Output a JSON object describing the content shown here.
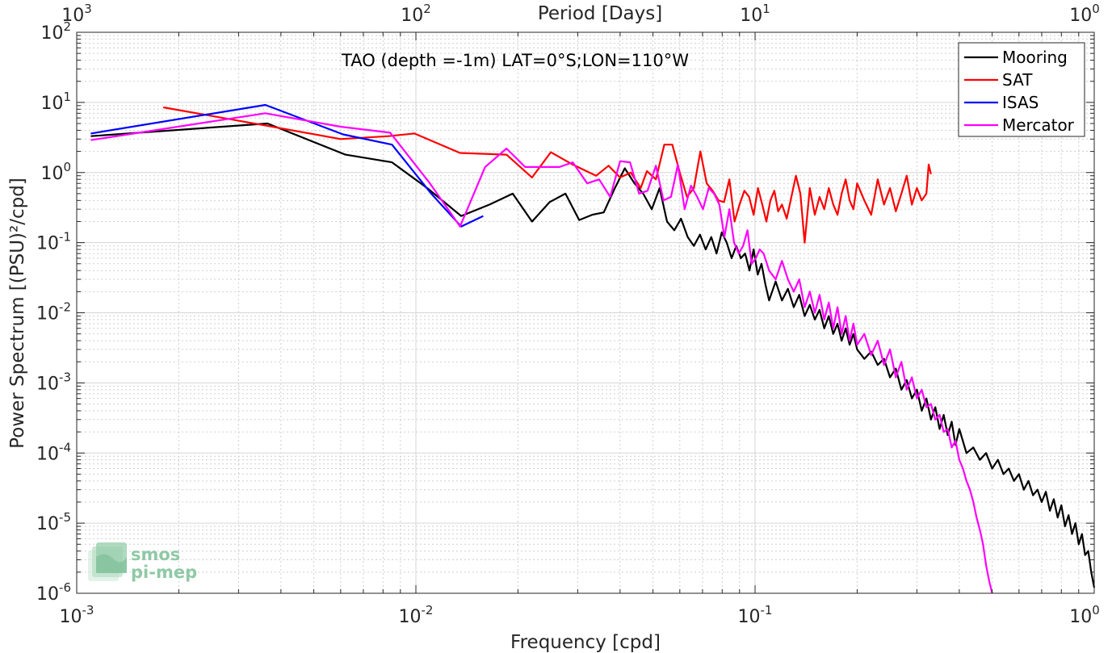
{
  "chart_data": {
    "type": "line",
    "title": "TAO (depth =-1m) LAT=0°S;LON=110°W",
    "xlabel": "Frequency [cpd]",
    "ylabel": "Power Spectrum [(PSU)²/cpd]",
    "top_xlabel": "Period [Days]",
    "xscale": "log",
    "yscale": "log",
    "xlim": [
      0.001,
      1
    ],
    "ylim": [
      1e-06,
      100
    ],
    "grid": true,
    "legend_position": "top-right",
    "x_ticks": [
      {
        "value": 0.001,
        "base": "10",
        "exp": "-3"
      },
      {
        "value": 0.01,
        "base": "10",
        "exp": "-2"
      },
      {
        "value": 0.1,
        "base": "10",
        "exp": "-1"
      },
      {
        "value": 1,
        "base": "10",
        "exp": "0"
      }
    ],
    "top_ticks": [
      {
        "value": 0.001,
        "base": "10",
        "exp": "3"
      },
      {
        "value": 0.01,
        "base": "10",
        "exp": "2"
      },
      {
        "value": 0.1,
        "base": "10",
        "exp": "1"
      },
      {
        "value": 1,
        "base": "10",
        "exp": "0"
      }
    ],
    "y_ticks": [
      {
        "value": 100,
        "base": "10",
        "exp": "2"
      },
      {
        "value": 10,
        "base": "10",
        "exp": "1"
      },
      {
        "value": 1,
        "base": "10",
        "exp": "0"
      },
      {
        "value": 0.1,
        "base": "10",
        "exp": "-1"
      },
      {
        "value": 0.01,
        "base": "10",
        "exp": "-2"
      },
      {
        "value": 0.001,
        "base": "10",
        "exp": "-3"
      },
      {
        "value": 0.0001,
        "base": "10",
        "exp": "-4"
      },
      {
        "value": 1e-05,
        "base": "10",
        "exp": "-5"
      },
      {
        "value": 1e-06,
        "base": "10",
        "exp": "-6"
      }
    ],
    "series": [
      {
        "name": "Mooring",
        "color": "#000000",
        "x": [
          0.0011,
          0.00365,
          0.0062,
          0.0085,
          0.0108,
          0.0136,
          0.0165,
          0.0193,
          0.022,
          0.0248,
          0.0276,
          0.0303,
          0.0331,
          0.0358,
          0.0386,
          0.0413,
          0.0441,
          0.0468,
          0.0496,
          0.0523,
          0.055,
          0.0578,
          0.0605,
          0.0633,
          0.066,
          0.0688,
          0.0715,
          0.0743,
          0.077,
          0.0798,
          0.0825,
          0.0853,
          0.088,
          0.0908,
          0.0935,
          0.0963,
          0.099,
          0.1018,
          0.1045,
          0.1073,
          0.11,
          0.115,
          0.12,
          0.125,
          0.13,
          0.135,
          0.14,
          0.145,
          0.15,
          0.155,
          0.16,
          0.165,
          0.17,
          0.175,
          0.18,
          0.185,
          0.19,
          0.195,
          0.2,
          0.21,
          0.22,
          0.23,
          0.24,
          0.25,
          0.26,
          0.27,
          0.28,
          0.29,
          0.3,
          0.31,
          0.32,
          0.33,
          0.34,
          0.35,
          0.36,
          0.37,
          0.38,
          0.39,
          0.4,
          0.42,
          0.44,
          0.46,
          0.48,
          0.5,
          0.52,
          0.54,
          0.56,
          0.58,
          0.6,
          0.62,
          0.64,
          0.66,
          0.68,
          0.7,
          0.72,
          0.74,
          0.76,
          0.78,
          0.8,
          0.82,
          0.84,
          0.86,
          0.88,
          0.9,
          0.92,
          0.94,
          0.96,
          0.98,
          1.0
        ],
        "y": [
          3.3,
          5.0,
          1.8,
          1.4,
          0.6,
          0.24,
          0.35,
          0.5,
          0.2,
          0.38,
          0.5,
          0.21,
          0.25,
          0.27,
          0.6,
          1.15,
          0.7,
          0.5,
          0.3,
          0.6,
          0.2,
          0.15,
          0.22,
          0.12,
          0.09,
          0.13,
          0.08,
          0.12,
          0.07,
          0.14,
          0.1,
          0.06,
          0.09,
          0.06,
          0.07,
          0.04,
          0.08,
          0.035,
          0.05,
          0.025,
          0.015,
          0.028,
          0.015,
          0.022,
          0.012,
          0.018,
          0.009,
          0.013,
          0.008,
          0.011,
          0.006,
          0.009,
          0.005,
          0.007,
          0.004,
          0.006,
          0.0035,
          0.005,
          0.003,
          0.0022,
          0.0028,
          0.0018,
          0.0022,
          0.0012,
          0.0016,
          0.0008,
          0.0011,
          0.0006,
          0.0008,
          0.0004,
          0.0006,
          0.0003,
          0.00045,
          0.00022,
          0.00035,
          0.00018,
          0.00028,
          0.00013,
          0.00022,
          0.0001,
          0.00012,
          8e-05,
          0.0001,
          6e-05,
          8e-05,
          5e-05,
          6e-05,
          4e-05,
          5e-05,
          3e-05,
          4e-05,
          2.5e-05,
          3e-05,
          2e-05,
          2.8e-05,
          1.5e-05,
          2.2e-05,
          1.2e-05,
          1.8e-05,
          9e-06,
          1.3e-05,
          7e-06,
          1e-05,
          5e-06,
          7e-06,
          3.5e-06,
          4e-06,
          2e-06,
          1.2e-06
        ]
      },
      {
        "name": "SAT",
        "color": "#ff0000",
        "x": [
          0.0018,
          0.0036,
          0.006,
          0.0083,
          0.0099,
          0.0135,
          0.0185,
          0.022,
          0.025,
          0.029,
          0.034,
          0.037,
          0.04,
          0.043,
          0.046,
          0.048,
          0.051,
          0.054,
          0.057,
          0.06,
          0.063,
          0.066,
          0.069,
          0.072,
          0.075,
          0.078,
          0.081,
          0.084,
          0.087,
          0.09,
          0.093,
          0.096,
          0.099,
          0.102,
          0.105,
          0.108,
          0.111,
          0.114,
          0.117,
          0.12,
          0.124,
          0.128,
          0.132,
          0.136,
          0.14,
          0.145,
          0.15,
          0.155,
          0.16,
          0.165,
          0.17,
          0.175,
          0.18,
          0.185,
          0.19,
          0.195,
          0.2,
          0.21,
          0.22,
          0.23,
          0.24,
          0.25,
          0.26,
          0.27,
          0.28,
          0.29,
          0.3,
          0.31,
          0.32,
          0.325,
          0.33
        ],
        "y": [
          8.5,
          4.7,
          3.0,
          3.3,
          3.6,
          1.9,
          1.8,
          0.85,
          1.95,
          1.3,
          0.9,
          1.25,
          0.85,
          1.0,
          0.6,
          1.05,
          0.8,
          2.5,
          2.5,
          1.0,
          0.45,
          0.6,
          2.0,
          0.7,
          0.55,
          0.4,
          0.38,
          0.8,
          0.2,
          0.35,
          0.55,
          0.45,
          0.25,
          0.6,
          0.35,
          0.2,
          0.4,
          0.55,
          0.28,
          0.35,
          0.22,
          0.45,
          0.9,
          0.5,
          0.1,
          0.6,
          0.25,
          0.45,
          0.3,
          0.6,
          0.35,
          0.25,
          0.5,
          0.8,
          0.4,
          0.3,
          0.7,
          0.4,
          0.25,
          0.8,
          0.35,
          0.6,
          0.28,
          0.5,
          0.9,
          0.35,
          0.6,
          0.4,
          0.5,
          1.3,
          0.95
        ]
      },
      {
        "name": "ISAS",
        "color": "#0000ff",
        "x": [
          0.0011,
          0.0036,
          0.0061,
          0.0085,
          0.0111,
          0.0136,
          0.0158
        ],
        "y": [
          3.6,
          9.2,
          3.5,
          2.5,
          0.5,
          0.17,
          0.24
        ]
      },
      {
        "name": "Mercator",
        "color": "#ff00ff",
        "x": [
          0.0011,
          0.0036,
          0.006,
          0.0084,
          0.011,
          0.0135,
          0.016,
          0.0185,
          0.021,
          0.0238,
          0.0265,
          0.029,
          0.032,
          0.0347,
          0.0374,
          0.04,
          0.0428,
          0.0455,
          0.0482,
          0.051,
          0.0537,
          0.0565,
          0.0592,
          0.062,
          0.0647,
          0.0675,
          0.0702,
          0.073,
          0.0757,
          0.0785,
          0.0812,
          0.084,
          0.0867,
          0.0895,
          0.0922,
          0.095,
          0.0977,
          0.1005,
          0.1032,
          0.106,
          0.11,
          0.115,
          0.12,
          0.125,
          0.13,
          0.135,
          0.14,
          0.145,
          0.15,
          0.155,
          0.16,
          0.165,
          0.17,
          0.175,
          0.18,
          0.185,
          0.19,
          0.195,
          0.2,
          0.21,
          0.22,
          0.23,
          0.24,
          0.25,
          0.26,
          0.27,
          0.28,
          0.29,
          0.3,
          0.31,
          0.32,
          0.33,
          0.34,
          0.35,
          0.36,
          0.37,
          0.38,
          0.39,
          0.4,
          0.41,
          0.42,
          0.43,
          0.44,
          0.45,
          0.46,
          0.47,
          0.48,
          0.49,
          0.5
        ],
        "y": [
          2.9,
          7.0,
          4.5,
          3.7,
          0.7,
          0.17,
          1.2,
          2.2,
          1.2,
          1.2,
          1.2,
          1.4,
          0.7,
          0.8,
          0.45,
          1.45,
          1.4,
          0.5,
          0.55,
          1.25,
          0.4,
          0.45,
          1.3,
          0.3,
          0.65,
          0.45,
          0.3,
          0.6,
          0.5,
          0.35,
          0.12,
          0.3,
          0.1,
          0.07,
          0.09,
          0.15,
          0.05,
          0.06,
          0.08,
          0.07,
          0.04,
          0.03,
          0.055,
          0.03,
          0.02,
          0.03,
          0.012,
          0.02,
          0.01,
          0.018,
          0.008,
          0.014,
          0.006,
          0.012,
          0.005,
          0.009,
          0.004,
          0.007,
          0.0035,
          0.005,
          0.0025,
          0.004,
          0.0018,
          0.003,
          0.0012,
          0.002,
          0.0008,
          0.0012,
          0.0006,
          0.0008,
          0.00045,
          0.0005,
          0.0003,
          0.00035,
          0.0002,
          0.00022,
          0.00012,
          0.00015,
          8e-05,
          6e-05,
          4e-05,
          3e-05,
          2e-05,
          1.2e-05,
          8e-06,
          5e-06,
          2.5e-06,
          1.5e-06,
          9e-07
        ]
      }
    ]
  },
  "logo": {
    "line1": "smos",
    "line2": "pi-mep",
    "color": "#8fc9a6"
  }
}
